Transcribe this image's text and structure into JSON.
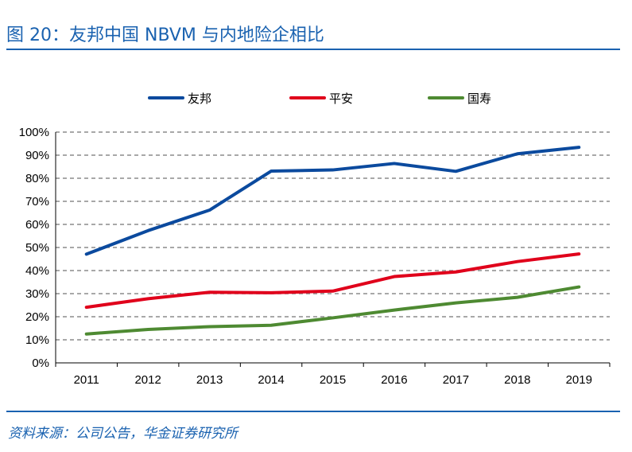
{
  "header": {
    "title": "图 20：友邦中国 NBVM 与内地险企相比"
  },
  "footer": {
    "source": "资料来源：公司公告，华金证券研究所"
  },
  "colors": {
    "title": "#1a62b0",
    "友邦": "#0b4a9e",
    "平安": "#e0001b",
    "国寿": "#4e8a32",
    "grid": "#8c8c8c"
  },
  "chart_data": {
    "type": "line",
    "categories": [
      "2011",
      "2012",
      "2013",
      "2014",
      "2015",
      "2016",
      "2017",
      "2018",
      "2019"
    ],
    "series": [
      {
        "name": "友邦",
        "values": [
          47.1,
          57.3,
          66.2,
          83.1,
          83.6,
          86.4,
          83.0,
          90.6,
          93.4
        ]
      },
      {
        "name": "平安",
        "values": [
          24.1,
          27.8,
          30.6,
          30.4,
          31.1,
          37.4,
          39.4,
          43.9,
          47.2
        ]
      },
      {
        "name": "国寿",
        "values": [
          12.5,
          14.5,
          15.7,
          16.3,
          19.5,
          22.9,
          26.0,
          28.4,
          32.9
        ]
      }
    ],
    "yticks": [
      "0%",
      "10%",
      "20%",
      "30%",
      "40%",
      "50%",
      "60%",
      "70%",
      "80%",
      "90%",
      "100%"
    ],
    "ylim": [
      0,
      100
    ],
    "yunit": "%",
    "grid": true,
    "legend": "top"
  }
}
